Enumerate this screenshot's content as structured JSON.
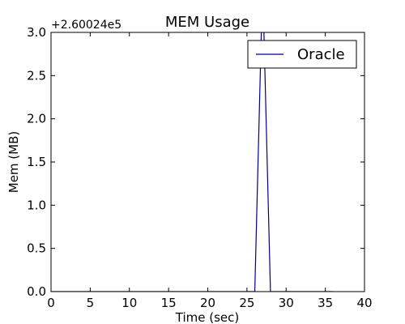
{
  "chart_data": {
    "type": "line",
    "title": "MEM Usage",
    "xlabel": "Time (sec)",
    "ylabel": "Mem (MB)",
    "y_offset_label": "+2.60024e5",
    "xlim": [
      0,
      40
    ],
    "ylim": [
      0,
      3.0
    ],
    "x_ticks": [
      "0",
      "5",
      "10",
      "15",
      "20",
      "25",
      "30",
      "35",
      "40"
    ],
    "y_ticks": [
      "0.0",
      "0.5",
      "1.0",
      "1.5",
      "2.0",
      "2.5",
      "3.0"
    ],
    "grid": false,
    "legend_position": "top-right",
    "series": [
      {
        "name": "Oracle",
        "color": "#00008b",
        "x": [
          0,
          26,
          27,
          28,
          36
        ],
        "y": [
          0,
          0,
          3.6,
          0,
          0
        ]
      }
    ]
  }
}
